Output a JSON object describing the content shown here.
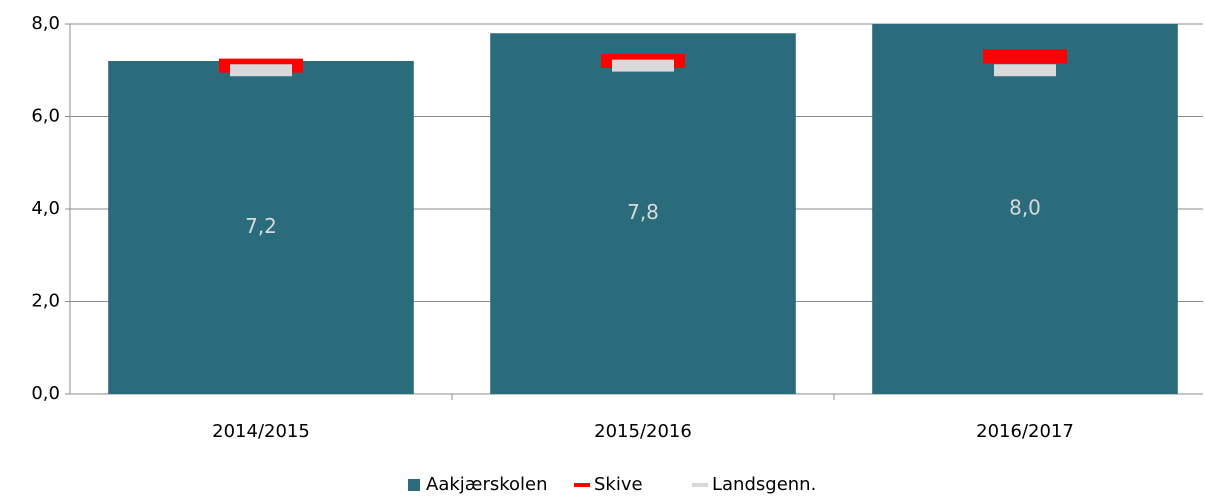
{
  "chart_data": {
    "type": "bar",
    "categories": [
      "2014/2015",
      "2015/2016",
      "2016/2017"
    ],
    "series": [
      {
        "name": "Aakjærskolen",
        "color": "#2a6b7c",
        "values": [
          7.2,
          7.8,
          8.0
        ],
        "value_labels": [
          "7,2",
          "7,8",
          "8,0"
        ]
      },
      {
        "name": "Skive",
        "color": "#ff0000",
        "values": [
          7.1,
          7.2,
          7.3
        ]
      },
      {
        "name": "Landsgenn.",
        "color": "#d9d9d9",
        "values": [
          7.0,
          7.1,
          7.0
        ]
      }
    ],
    "ylim": [
      0,
      8
    ],
    "yticks": [
      {
        "value": 0,
        "label": "0,0"
      },
      {
        "value": 2,
        "label": "2,0"
      },
      {
        "value": 4,
        "label": "4,0"
      },
      {
        "value": 6,
        "label": "6,0"
      },
      {
        "value": 8,
        "label": "8,0"
      }
    ],
    "grid": true,
    "legend": "bottom"
  }
}
